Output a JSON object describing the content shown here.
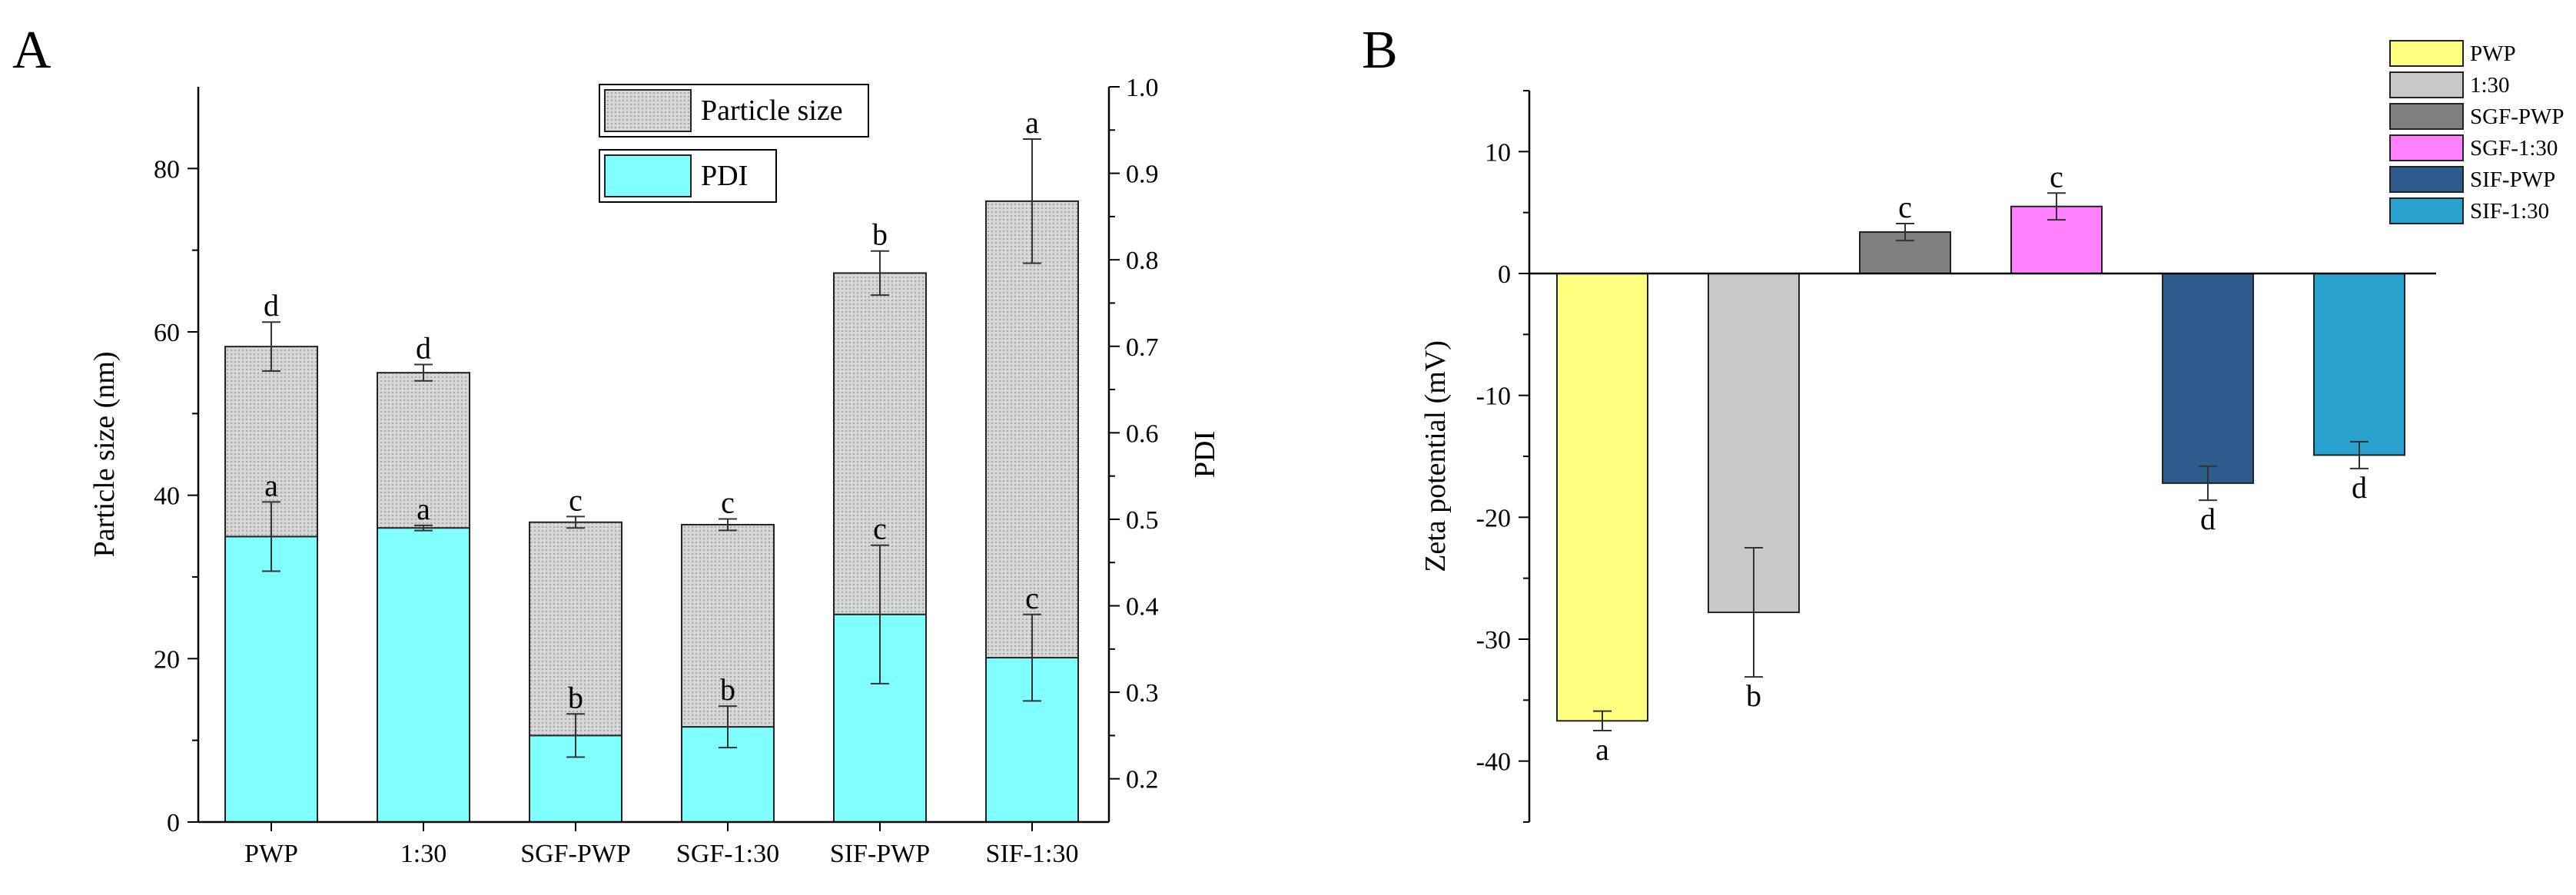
{
  "chart_data": [
    {
      "panel": "A",
      "type": "bar",
      "categories": [
        "PWP",
        "1:30",
        "SGF-PWP",
        "SGF-1:30",
        "SIF-PWP",
        "SIF-1:30"
      ],
      "ylabel": "Particle size (nm)",
      "y2label": "PDI",
      "ylim": [
        0,
        90
      ],
      "y_ticks": [
        0,
        20,
        40,
        60,
        80
      ],
      "y2lim": [
        0.15,
        1.0
      ],
      "y2_ticks": [
        "0.2",
        "0.3",
        "0.4",
        "0.5",
        "0.6",
        "0.7",
        "0.8",
        "0.9",
        "1.0"
      ],
      "legend_position": "top-right",
      "series": [
        {
          "name": "Particle size",
          "color": "#d6d6d6",
          "pattern": "dotted-grey",
          "axis": "left",
          "values": [
            58.2,
            55.0,
            36.7,
            36.4,
            67.2,
            76.0
          ],
          "errors": [
            3.0,
            1.0,
            0.7,
            0.7,
            2.7,
            7.6
          ],
          "labels": [
            "d",
            "d",
            "c",
            "c",
            "b",
            "a"
          ]
        },
        {
          "name": "PDI",
          "color": "#80ffff",
          "axis": "right",
          "values": [
            0.48,
            0.49,
            0.25,
            0.26,
            0.39,
            0.34
          ],
          "errors": [
            0.04,
            0.003,
            0.025,
            0.024,
            0.08,
            0.05
          ],
          "labels": [
            "a",
            "a",
            "b",
            "b",
            "c",
            "c"
          ]
        }
      ]
    },
    {
      "panel": "B",
      "type": "bar",
      "categories": [
        "PWP",
        "1:30",
        "SGF-PWP",
        "SGF-1:30",
        "SIF-PWP",
        "SIF-1:30"
      ],
      "ylabel": "Zeta potential (mV)",
      "ylim": [
        -45,
        15
      ],
      "y_ticks": [
        10,
        0,
        -10,
        -20,
        -30,
        -40
      ],
      "y_tick_labels": [
        "10",
        "0",
        "-10",
        "-20",
        "-30",
        "-40"
      ],
      "legend_position": "top-right",
      "series": [
        {
          "name": "Zeta potential",
          "values": [
            -36.7,
            -27.8,
            3.4,
            5.5,
            -17.2,
            -14.9
          ],
          "errors": [
            0.8,
            5.3,
            0.7,
            1.1,
            1.4,
            1.1
          ],
          "labels": [
            "a",
            "b",
            "c",
            "c",
            "d",
            "d"
          ],
          "colors": [
            "#ffff80",
            "#c8c8c8",
            "#808080",
            "#ff80ff",
            "#2d5b8c",
            "#2aa2d0"
          ]
        }
      ]
    }
  ],
  "panel_labels": [
    "A",
    "B"
  ]
}
